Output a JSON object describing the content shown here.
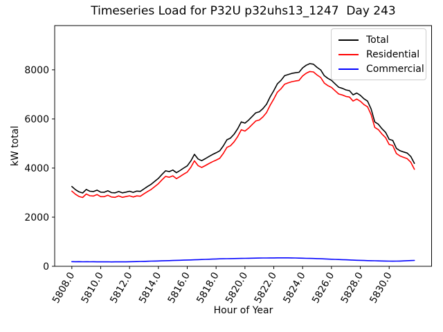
{
  "chart_data": {
    "type": "line",
    "title": "Timeseries Load for P32U p32uhs13_1247  Day 243",
    "xlabel": "Hour of Year",
    "ylabel": "kW total",
    "xlim": [
      5806.81,
      5832.94
    ],
    "ylim": [
      0,
      9800
    ],
    "xticks": [
      5808,
      5810,
      5812,
      5814,
      5816,
      5818,
      5820,
      5822,
      5824,
      5826,
      5828,
      5830
    ],
    "xtick_labels": [
      "5808.0",
      "5810.0",
      "5812.0",
      "5814.0",
      "5816.0",
      "5818.0",
      "5820.0",
      "5822.0",
      "5824.0",
      "5826.0",
      "5828.0",
      "5830.0"
    ],
    "yticks": [
      0,
      2000,
      4000,
      6000,
      8000
    ],
    "ytick_labels": [
      "0",
      "2000",
      "4000",
      "6000",
      "8000"
    ],
    "grid": false,
    "xtick_rotation_deg": 60,
    "legend": {
      "position": "upper right",
      "entries": [
        {
          "label": "Total",
          "color": "#000000"
        },
        {
          "label": "Residential",
          "color": "#ff0000"
        },
        {
          "label": "Commercial",
          "color": "#0000ff"
        }
      ]
    },
    "x": [
      5808.0,
      5808.25,
      5808.5,
      5808.75,
      5809.0,
      5809.25,
      5809.5,
      5809.75,
      5810.0,
      5810.25,
      5810.5,
      5810.75,
      5811.0,
      5811.25,
      5811.5,
      5811.75,
      5812.0,
      5812.25,
      5812.5,
      5812.75,
      5813.0,
      5813.25,
      5813.5,
      5813.75,
      5814.0,
      5814.25,
      5814.5,
      5814.75,
      5815.0,
      5815.25,
      5815.5,
      5815.75,
      5816.0,
      5816.25,
      5816.5,
      5816.75,
      5817.0,
      5817.25,
      5817.5,
      5817.75,
      5818.0,
      5818.25,
      5818.5,
      5818.75,
      5819.0,
      5819.25,
      5819.5,
      5819.75,
      5820.0,
      5820.25,
      5820.5,
      5820.75,
      5821.0,
      5821.25,
      5821.5,
      5821.75,
      5822.0,
      5822.25,
      5822.5,
      5822.75,
      5823.0,
      5823.25,
      5823.5,
      5823.75,
      5824.0,
      5824.25,
      5824.5,
      5824.75,
      5825.0,
      5825.25,
      5825.5,
      5825.75,
      5826.0,
      5826.25,
      5826.5,
      5826.75,
      5827.0,
      5827.25,
      5827.5,
      5827.75,
      5828.0,
      5828.25,
      5828.5,
      5828.75,
      5829.0,
      5829.25,
      5829.5,
      5829.75,
      5830.0,
      5830.25,
      5830.5,
      5830.75,
      5831.0,
      5831.25,
      5831.5,
      5831.75
    ],
    "series": [
      {
        "name": "Total",
        "color": "#000000",
        "values": [
          3250,
          3120,
          3030,
          2985,
          3130,
          3055,
          3045,
          3100,
          3020,
          3015,
          3075,
          3000,
          2990,
          3045,
          2990,
          3020,
          3055,
          3010,
          3060,
          3050,
          3150,
          3250,
          3340,
          3460,
          3580,
          3740,
          3890,
          3855,
          3920,
          3810,
          3900,
          4000,
          4090,
          4290,
          4560,
          4370,
          4300,
          4380,
          4470,
          4550,
          4620,
          4700,
          4900,
          5150,
          5220,
          5380,
          5600,
          5880,
          5830,
          5950,
          6100,
          6250,
          6290,
          6420,
          6600,
          6900,
          7150,
          7430,
          7570,
          7760,
          7810,
          7855,
          7880,
          7900,
          8080,
          8185,
          8250,
          8230,
          8100,
          7995,
          7760,
          7650,
          7570,
          7430,
          7290,
          7245,
          7180,
          7150,
          6980,
          7055,
          6960,
          6820,
          6725,
          6400,
          5880,
          5785,
          5600,
          5455,
          5170,
          5125,
          4800,
          4705,
          4655,
          4610,
          4470,
          4190
        ]
      },
      {
        "name": "Residential",
        "color": "#ff0000",
        "values": [
          3060,
          2935,
          2842,
          2802,
          2944,
          2873,
          2860,
          2920,
          2837,
          2835,
          2893,
          2822,
          2809,
          2866,
          2808,
          2840,
          2870,
          2822,
          2868,
          2854,
          2950,
          3045,
          3130,
          3246,
          3362,
          3517,
          3662,
          3623,
          3683,
          3568,
          3654,
          3750,
          3835,
          4030,
          4294,
          4099,
          4023,
          4098,
          4182,
          4257,
          4322,
          4397,
          4593,
          4840,
          4908,
          5065,
          5282,
          5559,
          5506,
          5623,
          5770,
          5917,
          5955,
          6083,
          6261,
          6559,
          6808,
          7087,
          7228,
          7416,
          7467,
          7515,
          7543,
          7567,
          7751,
          7860,
          7929,
          7913,
          7788,
          7689,
          7460,
          7356,
          7282,
          7148,
          7014,
          6975,
          6916,
          6892,
          6728,
          6809,
          6719,
          6584,
          6493,
          6172,
          5656,
          5565,
          5383,
          5241,
          4959,
          4916,
          4590,
          4491,
          4435,
          4383,
          4236,
          3950
        ]
      },
      {
        "name": "Commercial",
        "color": "#0000ff",
        "values": [
          190,
          185,
          188,
          183,
          186,
          182,
          185,
          180,
          183,
          180,
          182,
          178,
          181,
          179,
          182,
          180,
          185,
          188,
          192,
          196,
          200,
          205,
          210,
          214,
          218,
          223,
          228,
          232,
          237,
          242,
          246,
          250,
          255,
          260,
          266,
          271,
          277,
          282,
          288,
          293,
          298,
          303,
          307,
          310,
          312,
          315,
          318,
          321,
          324,
          327,
          330,
          333,
          335,
          337,
          339,
          341,
          342,
          343,
          344,
          344,
          343,
          340,
          337,
          333,
          329,
          325,
          321,
          317,
          312,
          306,
          300,
          294,
          288,
          282,
          276,
          270,
          264,
          258,
          252,
          246,
          241,
          236,
          232,
          228,
          224,
          220,
          217,
          214,
          211,
          209,
          210,
          214,
          220,
          227,
          234,
          240
        ]
      }
    ]
  }
}
